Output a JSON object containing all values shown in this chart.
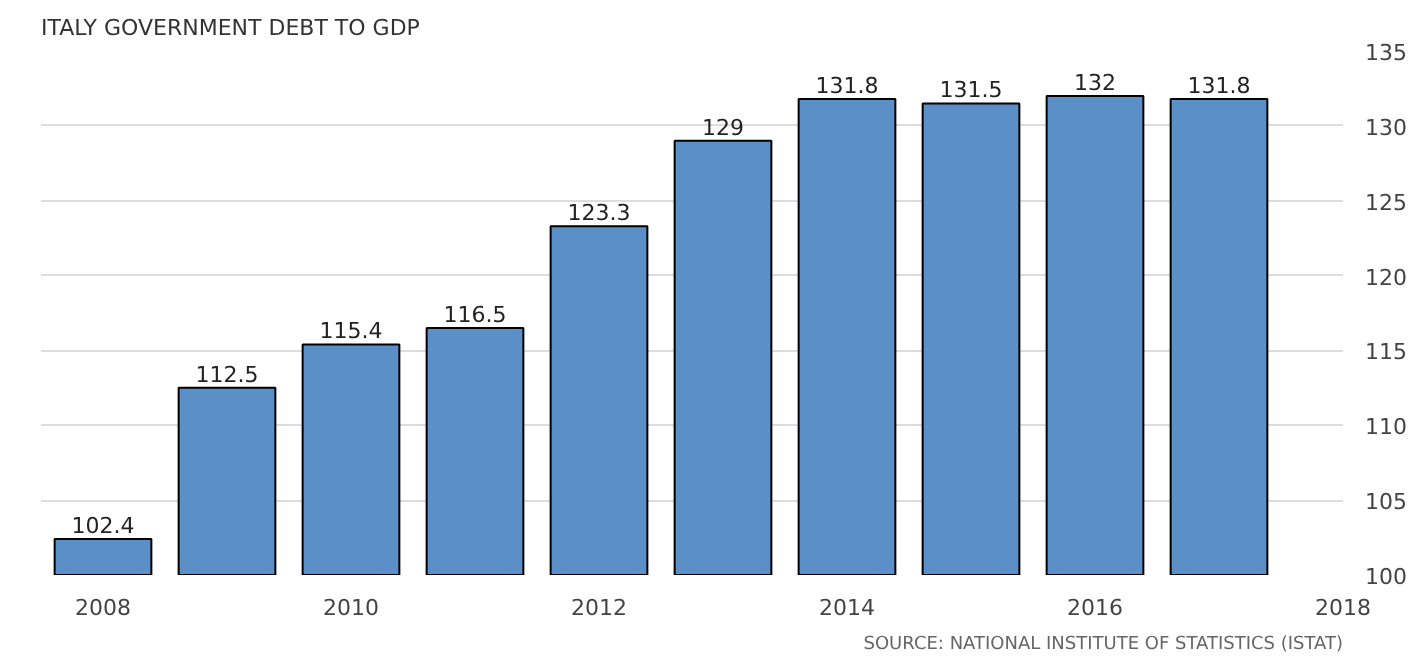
{
  "chart_data": {
    "type": "bar",
    "title": "ITALY GOVERNMENT DEBT TO GDP",
    "x": [
      2008,
      2009,
      2010,
      2011,
      2012,
      2013,
      2014,
      2015,
      2016,
      2017
    ],
    "values": [
      102.4,
      112.5,
      115.4,
      116.5,
      123.3,
      129,
      131.8,
      131.5,
      132,
      131.8
    ],
    "color": "#5b8fc7",
    "xlim": [
      2007.5,
      2018
    ],
    "xticks": [
      2008,
      2010,
      2012,
      2014,
      2016,
      2018
    ],
    "ylim": [
      100,
      135
    ],
    "yticks": [
      100,
      105,
      110,
      115,
      120,
      125,
      130,
      135
    ],
    "grid": "y",
    "data_labels": true,
    "annotations": [
      "SOURCE: NATIONAL INSTITUTE OF STATISTICS (ISTAT)"
    ]
  }
}
